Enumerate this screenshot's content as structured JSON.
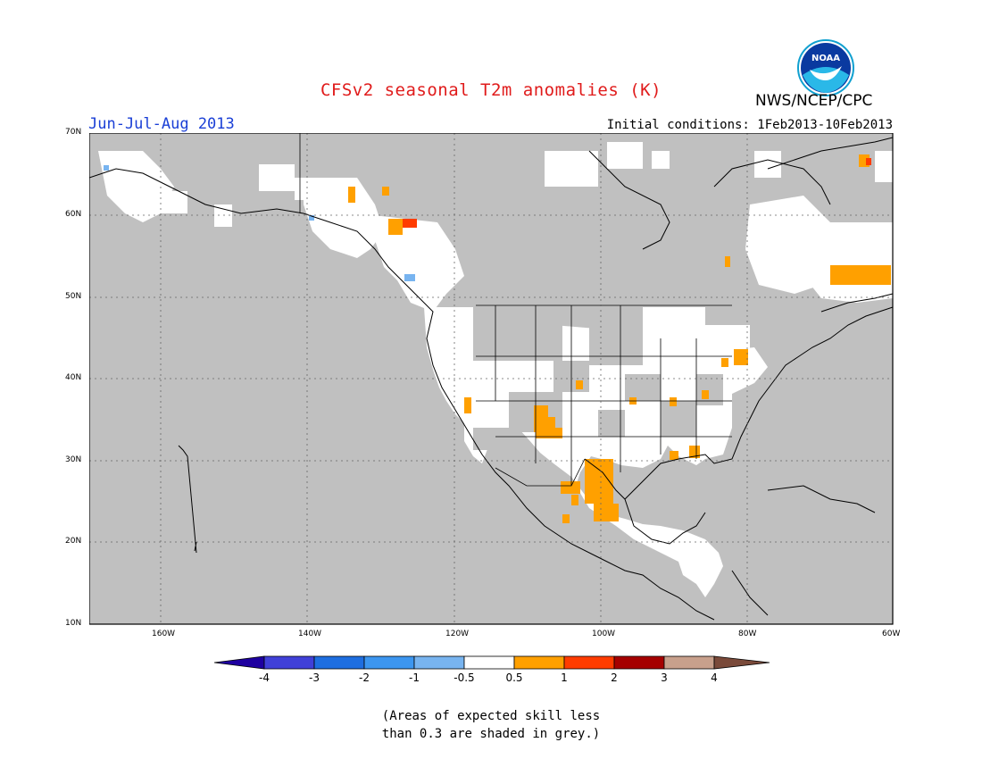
{
  "title": "CFSv2 seasonal T2m anomalies (K)",
  "season": "Jun-Jul-Aug 2013",
  "initial_conditions": "Initial conditions: 1Feb2013-10Feb2013",
  "agency": "NWS/NCEP/CPC",
  "logo_text": "NOAA",
  "note_line1": "(Areas of expected skill less",
  "note_line2": "than 0.3 are shaded in grey.)",
  "colors": {
    "grey_mask": "#c0c0c0",
    "land_white": "#ffffff",
    "warm1": "#ffa000",
    "warm2": "#ff3c00",
    "warm3": "#a50000",
    "cold1": "#78b4f0"
  },
  "map_data": {
    "lon_range": [
      -172,
      -60
    ],
    "lat_range": [
      10,
      70
    ],
    "lat_ticks": [
      "70N",
      "60N",
      "50N",
      "40N",
      "30N",
      "20N",
      "10N"
    ],
    "lon_ticks": [
      "160W",
      "140W",
      "120W",
      "100W",
      "80W",
      "60W"
    ],
    "grid": "dotted"
  },
  "colorbar": {
    "labels": [
      "-4",
      "-3",
      "-2",
      "-1",
      "-0.5",
      "0.5",
      "1",
      "2",
      "3",
      "4"
    ],
    "colors": [
      "#1e00a0",
      "#4040d8",
      "#1e6ee0",
      "#3c96f0",
      "#78b4f0",
      "#ffffff",
      "#ffa000",
      "#ff3c00",
      "#a50000",
      "#c8a08c",
      "#7a4a3a"
    ]
  }
}
